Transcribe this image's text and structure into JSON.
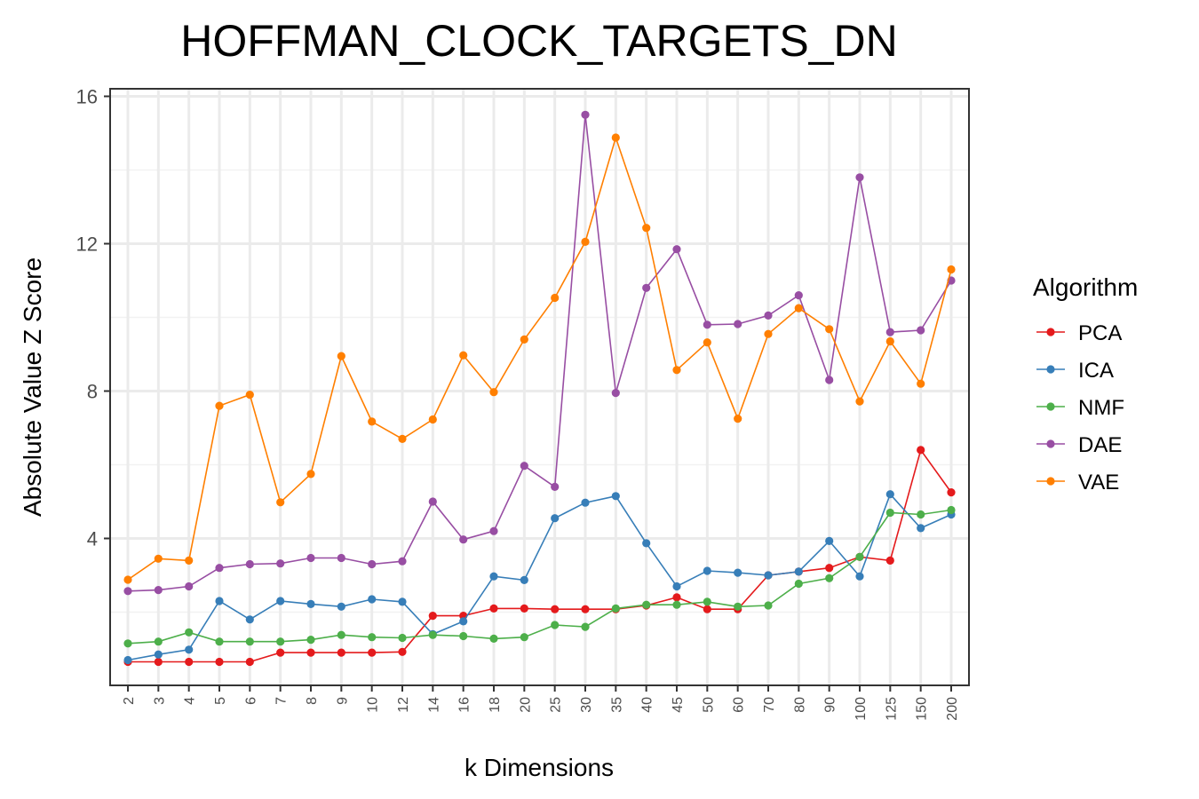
{
  "chart_data": {
    "type": "line",
    "title": "HOFFMAN_CLOCK_TARGETS_DN",
    "xlabel": "k Dimensions",
    "ylabel": "Absolute Value Z Score",
    "categories": [
      "2",
      "3",
      "4",
      "5",
      "6",
      "7",
      "8",
      "9",
      "10",
      "12",
      "14",
      "16",
      "18",
      "20",
      "25",
      "30",
      "35",
      "40",
      "45",
      "50",
      "60",
      "70",
      "80",
      "90",
      "100",
      "125",
      "150",
      "200"
    ],
    "ylim": [
      0,
      16
    ],
    "yticks": [
      "4",
      "8",
      "12",
      "16"
    ],
    "grid": true,
    "legend": {
      "title": "Algorithm",
      "position": "right"
    },
    "series": [
      {
        "name": "PCA",
        "color": "#E41A1C",
        "values": [
          0.65,
          0.65,
          0.65,
          0.65,
          0.65,
          0.9,
          0.9,
          0.9,
          0.9,
          0.92,
          1.9,
          1.9,
          2.1,
          2.1,
          2.08,
          2.08,
          2.08,
          2.18,
          2.4,
          2.08,
          2.08,
          3.0,
          3.1,
          3.2,
          3.5,
          3.4,
          6.4,
          5.25
        ]
      },
      {
        "name": "ICA",
        "color": "#377EB8",
        "values": [
          0.7,
          0.85,
          0.98,
          2.3,
          1.8,
          2.3,
          2.22,
          2.15,
          2.35,
          2.28,
          1.4,
          1.75,
          2.97,
          2.87,
          4.55,
          4.97,
          5.15,
          3.87,
          2.7,
          3.12,
          3.07,
          3.0,
          3.1,
          3.93,
          2.97,
          5.2,
          4.28,
          4.65
        ]
      },
      {
        "name": "NMF",
        "color": "#4DAF4A",
        "values": [
          1.15,
          1.2,
          1.45,
          1.2,
          1.2,
          1.2,
          1.25,
          1.38,
          1.32,
          1.3,
          1.38,
          1.35,
          1.28,
          1.32,
          1.65,
          1.6,
          2.1,
          2.2,
          2.2,
          2.28,
          2.15,
          2.18,
          2.77,
          2.92,
          3.5,
          4.7,
          4.65,
          4.77
        ]
      },
      {
        "name": "DAE",
        "color": "#984EA3",
        "values": [
          2.57,
          2.6,
          2.7,
          3.2,
          3.3,
          3.32,
          3.47,
          3.47,
          3.3,
          3.38,
          5.0,
          3.97,
          4.2,
          5.97,
          5.4,
          15.5,
          7.95,
          10.8,
          11.85,
          9.8,
          9.82,
          10.05,
          10.6,
          8.3,
          13.8,
          9.6,
          9.65,
          11.0
        ]
      },
      {
        "name": "VAE",
        "color": "#FF7F00",
        "values": [
          2.88,
          3.45,
          3.4,
          7.6,
          7.9,
          4.98,
          5.75,
          8.95,
          7.17,
          6.7,
          7.23,
          8.97,
          7.97,
          9.4,
          10.53,
          12.05,
          14.88,
          12.43,
          8.57,
          9.32,
          7.25,
          9.55,
          10.25,
          9.68,
          7.72,
          9.35,
          8.2,
          11.3
        ]
      }
    ]
  }
}
